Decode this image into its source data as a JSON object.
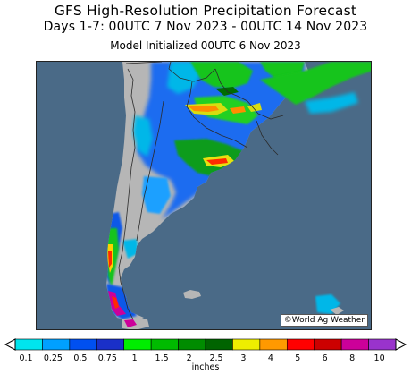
{
  "title": "GFS High-Resolution Precipitation Forecast",
  "period": "Days 1-7: 00UTC 7 Nov 2023 - 00UTC 14 Nov 2023",
  "initialized": "Model Initialized 00UTC 6 Nov 2023",
  "credit": "©World Ag Weather",
  "colors": {
    "ocean": "#4a6a87",
    "land": "#b6b6b6",
    "border": "#2a2a2a"
  },
  "legend": {
    "units": "inches",
    "ticks": [
      "0.1",
      "0.25",
      "0.5",
      "0.75",
      "1",
      "1.5",
      "2",
      "2.5",
      "3",
      "4",
      "5",
      "6",
      "8",
      "10"
    ],
    "colors": [
      "#00e5ee",
      "#00a0ff",
      "#0050f0",
      "#1a30c8",
      "#00ee00",
      "#00bb00",
      "#008c00",
      "#006400",
      "#eeee00",
      "#ff9900",
      "#ff0000",
      "#cc0000",
      "#cc0099",
      "#9933cc"
    ]
  }
}
